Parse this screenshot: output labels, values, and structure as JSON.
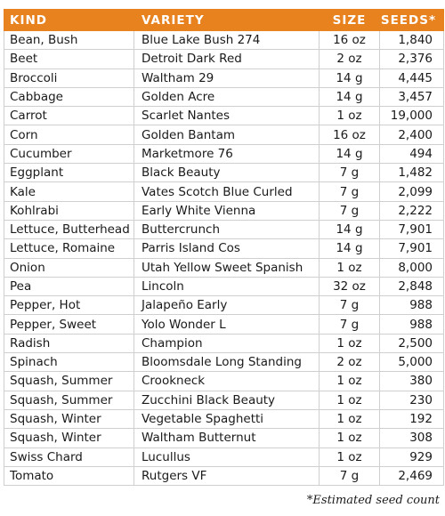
{
  "headers": {
    "kind": "KIND",
    "variety": "VARIETY",
    "size": "SIZE",
    "seeds": "SEEDS*"
  },
  "rows": [
    {
      "kind": "Bean, Bush",
      "variety": "Blue Lake Bush 274",
      "size": "16 oz",
      "seeds": "1,840"
    },
    {
      "kind": "Beet",
      "variety": "Detroit Dark Red",
      "size": "2 oz",
      "seeds": "2,376"
    },
    {
      "kind": "Broccoli",
      "variety": "Waltham 29",
      "size": "14 g",
      "seeds": "4,445"
    },
    {
      "kind": "Cabbage",
      "variety": "Golden Acre",
      "size": "14 g",
      "seeds": "3,457"
    },
    {
      "kind": "Carrot",
      "variety": "Scarlet Nantes",
      "size": "1 oz",
      "seeds": "19,000"
    },
    {
      "kind": "Corn",
      "variety": "Golden Bantam",
      "size": "16 oz",
      "seeds": "2,400"
    },
    {
      "kind": "Cucumber",
      "variety": "Marketmore 76",
      "size": "14 g",
      "seeds": "494"
    },
    {
      "kind": "Eggplant",
      "variety": "Black Beauty",
      "size": "7 g",
      "seeds": "1,482"
    },
    {
      "kind": "Kale",
      "variety": "Vates Scotch Blue Curled",
      "size": "7 g",
      "seeds": "2,099"
    },
    {
      "kind": "Kohlrabi",
      "variety": "Early White Vienna",
      "size": "7 g",
      "seeds": "2,222"
    },
    {
      "kind": "Lettuce, Butterhead",
      "variety": "Buttercrunch",
      "size": "14 g",
      "seeds": "7,901"
    },
    {
      "kind": "Lettuce, Romaine",
      "variety": "Parris Island Cos",
      "size": "14 g",
      "seeds": "7,901"
    },
    {
      "kind": "Onion",
      "variety": "Utah Yellow Sweet Spanish",
      "size": "1 oz",
      "seeds": "8,000"
    },
    {
      "kind": "Pea",
      "variety": "Lincoln",
      "size": "32 oz",
      "seeds": "2,848"
    },
    {
      "kind": "Pepper, Hot",
      "variety": "Jalapeño Early",
      "size": "7 g",
      "seeds": "988"
    },
    {
      "kind": "Pepper, Sweet",
      "variety": "Yolo Wonder L",
      "size": "7 g",
      "seeds": "988"
    },
    {
      "kind": "Radish",
      "variety": "Champion",
      "size": "1 oz",
      "seeds": "2,500"
    },
    {
      "kind": "Spinach",
      "variety": "Bloomsdale Long Standing",
      "size": "2 oz",
      "seeds": "5,000"
    },
    {
      "kind": "Squash, Summer",
      "variety": "Crookneck",
      "size": "1 oz",
      "seeds": "380"
    },
    {
      "kind": "Squash, Summer",
      "variety": "Zucchini Black Beauty",
      "size": "1 oz",
      "seeds": "230"
    },
    {
      "kind": "Squash, Winter",
      "variety": "Vegetable Spaghetti",
      "size": "1 oz",
      "seeds": "192"
    },
    {
      "kind": "Squash, Winter",
      "variety": "Waltham Butternut",
      "size": "1 oz",
      "seeds": "308"
    },
    {
      "kind": "Swiss Chard",
      "variety": "Lucullus",
      "size": "1 oz",
      "seeds": "929"
    },
    {
      "kind": "Tomato",
      "variety": "Rutgers VF",
      "size": "7 g",
      "seeds": "2,469"
    }
  ],
  "footnote": "*Estimated seed count",
  "colors": {
    "header_bg": "#e8821e",
    "header_text": "#ffffff",
    "grid": "#cfcfcf"
  }
}
